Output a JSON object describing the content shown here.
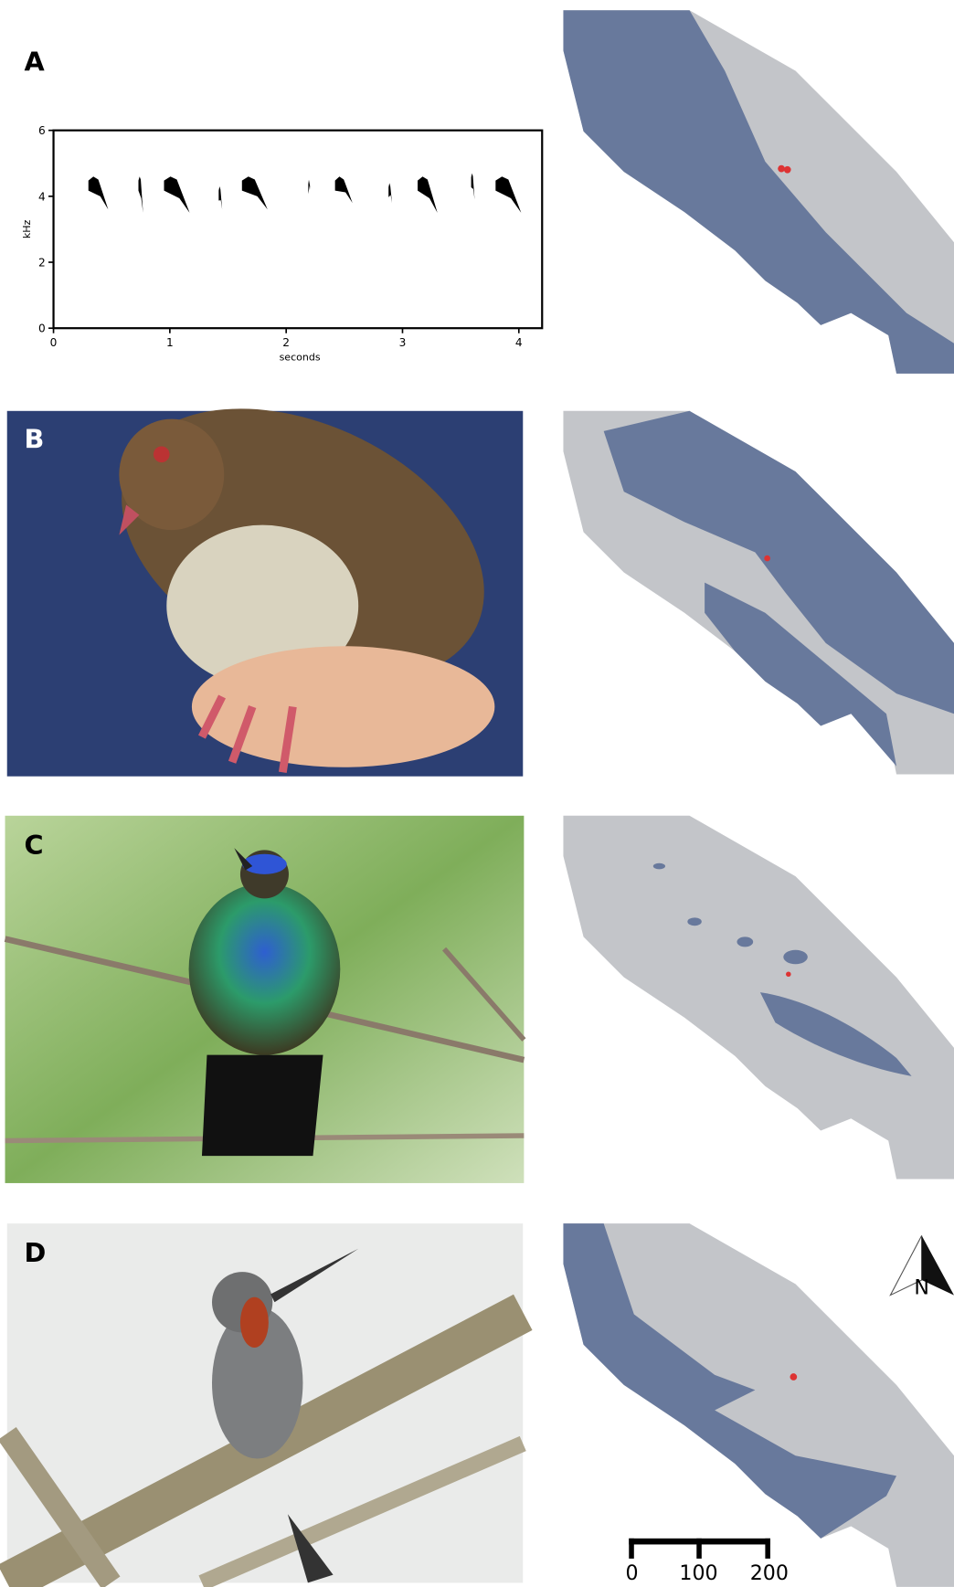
{
  "panels": [
    {
      "label": "A"
    },
    {
      "label": "B"
    },
    {
      "label": "C"
    },
    {
      "label": "D"
    }
  ],
  "spectrogram": {
    "type": "spectrogram",
    "y_label": "kHz",
    "x_label": "seconds",
    "xlim": [
      0,
      4.2
    ],
    "ylim": [
      0,
      6
    ],
    "xticks": [
      0,
      1,
      2,
      3,
      4
    ],
    "yticks": [
      0,
      2,
      4,
      6
    ],
    "color": "#000000",
    "notes": [
      {
        "start": 0.3,
        "end": 0.47,
        "high": 4.6,
        "low": 3.6
      },
      {
        "start": 0.73,
        "end": 0.77,
        "high": 4.6,
        "low": 3.5
      },
      {
        "start": 0.95,
        "end": 1.17,
        "high": 4.6,
        "low": 3.5
      },
      {
        "start": 1.42,
        "end": 1.45,
        "high": 4.3,
        "low": 3.6
      },
      {
        "start": 1.62,
        "end": 1.84,
        "high": 4.6,
        "low": 3.6
      },
      {
        "start": 2.19,
        "end": 2.21,
        "high": 4.5,
        "low": 4.2
      },
      {
        "start": 2.42,
        "end": 2.57,
        "high": 4.6,
        "low": 3.8
      },
      {
        "start": 2.88,
        "end": 2.91,
        "high": 4.4,
        "low": 3.8
      },
      {
        "start": 3.13,
        "end": 3.3,
        "high": 4.6,
        "low": 3.5
      },
      {
        "start": 3.59,
        "end": 3.62,
        "high": 4.7,
        "low": 3.9
      },
      {
        "start": 3.8,
        "end": 4.02,
        "high": 4.6,
        "low": 3.5
      }
    ]
  },
  "scale_bar": {
    "labels": [
      0,
      100,
      200
    ]
  },
  "north_arrow": {
    "label": "N"
  }
}
